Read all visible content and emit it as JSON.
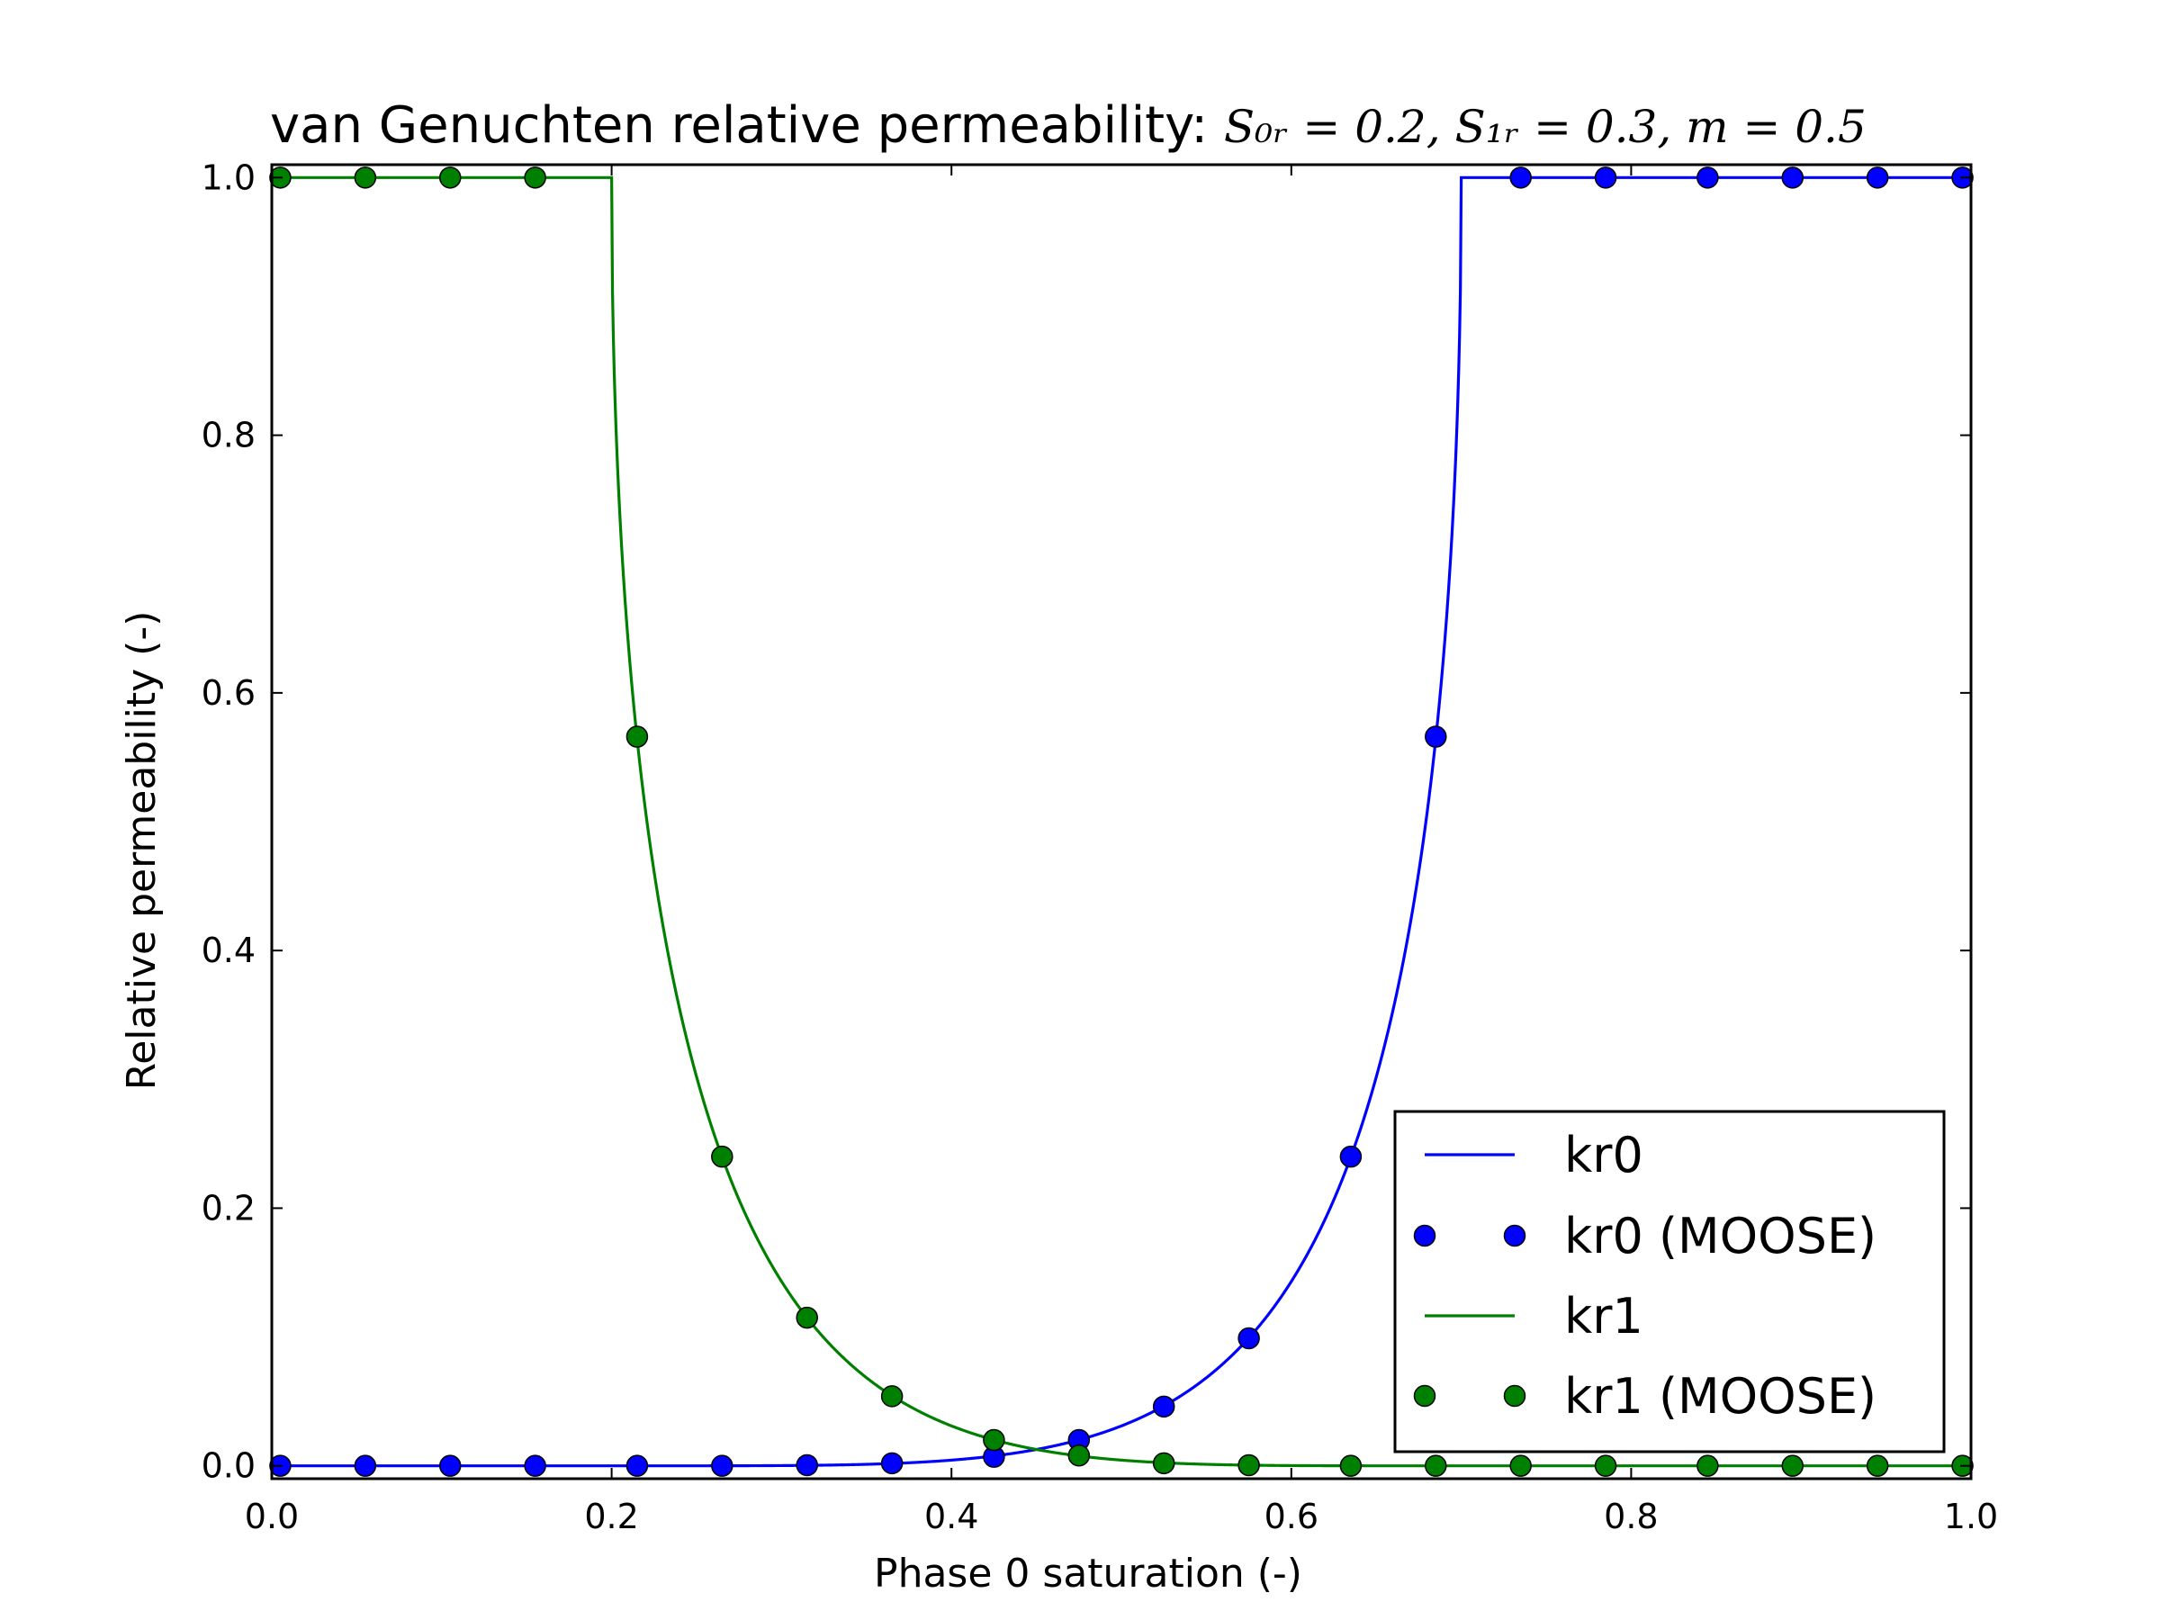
{
  "chart_data": {
    "type": "line",
    "title": "van Genuchten relative permeability: ",
    "title_math": "S₀ᵣ = 0.2, S₁ᵣ = 0.3, m = 0.5",
    "xlabel": "Phase 0 saturation (-)",
    "ylabel": "Relative permeability (-)",
    "xlim": [
      0.0,
      1.0
    ],
    "ylim": [
      -0.01,
      1.01
    ],
    "xticks": [
      "0.0",
      "0.2",
      "0.4",
      "0.6",
      "0.8",
      "1.0"
    ],
    "yticks": [
      "0.0",
      "0.2",
      "0.4",
      "0.6",
      "0.8",
      "1.0"
    ],
    "grid": false,
    "legend_position": "lower-right",
    "params": {
      "s0r": 0.2,
      "s1r": 0.3,
      "m": 0.5
    },
    "series": [
      {
        "name": "kr0",
        "kind": "line",
        "color": "#0000ff"
      },
      {
        "name": "kr0 (MOOSE)",
        "kind": "markers",
        "color": "#0000ff",
        "x": [
          0.005,
          0.055,
          0.105,
          0.155,
          0.215,
          0.265,
          0.315,
          0.365,
          0.425,
          0.475,
          0.525,
          0.575,
          0.635,
          0.685,
          0.735,
          0.785,
          0.845,
          0.895,
          0.945,
          0.995
        ],
        "y": [
          0.0,
          0.0,
          0.0,
          0.0,
          0.0,
          0.0,
          0.0005,
          0.002,
          0.007,
          0.02,
          0.046,
          0.099,
          0.24,
          0.566,
          1.0,
          1.0,
          1.0,
          1.0,
          1.0,
          1.0
        ]
      },
      {
        "name": "kr1",
        "kind": "line",
        "color": "#008000"
      },
      {
        "name": "kr1 (MOOSE)",
        "kind": "markers",
        "color": "#008000",
        "x": [
          0.005,
          0.055,
          0.105,
          0.155,
          0.215,
          0.265,
          0.315,
          0.365,
          0.425,
          0.475,
          0.525,
          0.575,
          0.635,
          0.685,
          0.735,
          0.785,
          0.845,
          0.895,
          0.945,
          0.995
        ],
        "y": [
          1.0,
          1.0,
          1.0,
          1.0,
          0.566,
          0.24,
          0.115,
          0.054,
          0.02,
          0.008,
          0.002,
          0.0005,
          0.0,
          0.0,
          0.0,
          0.0,
          0.0,
          0.0,
          0.0,
          0.0
        ]
      }
    ]
  }
}
